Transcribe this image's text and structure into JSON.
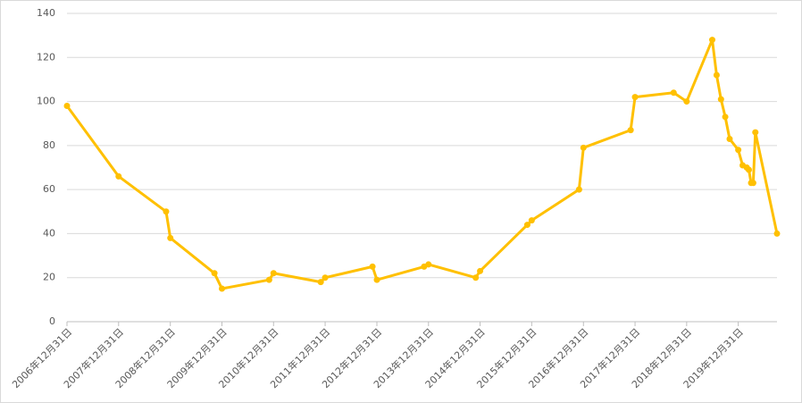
{
  "chart_data": {
    "type": "line",
    "x": [
      "2006-12-31",
      "2007-12-31",
      "2008-12-01",
      "2008-12-31",
      "2009-11-08",
      "2009-12-31",
      "2010-11-30",
      "2010-12-31",
      "2011-11-30",
      "2011-12-31",
      "2012-11-30",
      "2012-12-31",
      "2013-11-30",
      "2013-12-31",
      "2014-11-30",
      "2014-12-31",
      "2015-11-30",
      "2015-12-31",
      "2016-11-30",
      "2016-12-31",
      "2017-11-30",
      "2017-12-31",
      "2018-09-30",
      "2018-12-31",
      "2019-06-30",
      "2019-07-31",
      "2019-08-31",
      "2019-09-30",
      "2019-10-31",
      "2019-12-31",
      "2020-01-31",
      "2020-02-29",
      "2020-03-15",
      "2020-03-31",
      "2020-04-15",
      "2020-04-30",
      "2020-09-30"
    ],
    "series": [
      {
        "color": "#ffc000",
        "values": [
          98,
          66,
          50,
          38,
          22,
          15,
          19,
          22,
          18,
          20,
          25,
          19,
          25,
          26,
          20,
          23,
          44,
          46,
          60,
          79,
          87,
          102,
          104,
          100,
          128,
          112,
          101,
          93,
          83,
          78,
          71,
          70,
          69,
          63,
          63,
          86,
          40
        ]
      }
    ],
    "xlim": [
      "2006-12-31",
      "2020-09-30"
    ],
    "xticks": [
      {
        "value": "2006-12-31",
        "label": "2006年12月31日"
      },
      {
        "value": "2007-12-31",
        "label": "2007年12月31日"
      },
      {
        "value": "2008-12-31",
        "label": "2008年12月31日"
      },
      {
        "value": "2009-12-31",
        "label": "2009年12月31日"
      },
      {
        "value": "2010-12-31",
        "label": "2010年12月31日"
      },
      {
        "value": "2011-12-31",
        "label": "2011年12月31日"
      },
      {
        "value": "2012-12-31",
        "label": "2012年12月31日"
      },
      {
        "value": "2013-12-31",
        "label": "2013年12月31日"
      },
      {
        "value": "2014-12-31",
        "label": "2014年12月31日"
      },
      {
        "value": "2015-12-31",
        "label": "2015年12月31日"
      },
      {
        "value": "2016-12-31",
        "label": "2016年12月31日"
      },
      {
        "value": "2017-12-31",
        "label": "2017年12月31日"
      },
      {
        "value": "2018-12-31",
        "label": "2018年12月31日"
      },
      {
        "value": "2019-12-31",
        "label": "2019年12月31日"
      }
    ],
    "ylim": [
      0,
      140
    ],
    "yticks": [
      0,
      20,
      40,
      60,
      80,
      100,
      120,
      140
    ],
    "grid": true
  }
}
